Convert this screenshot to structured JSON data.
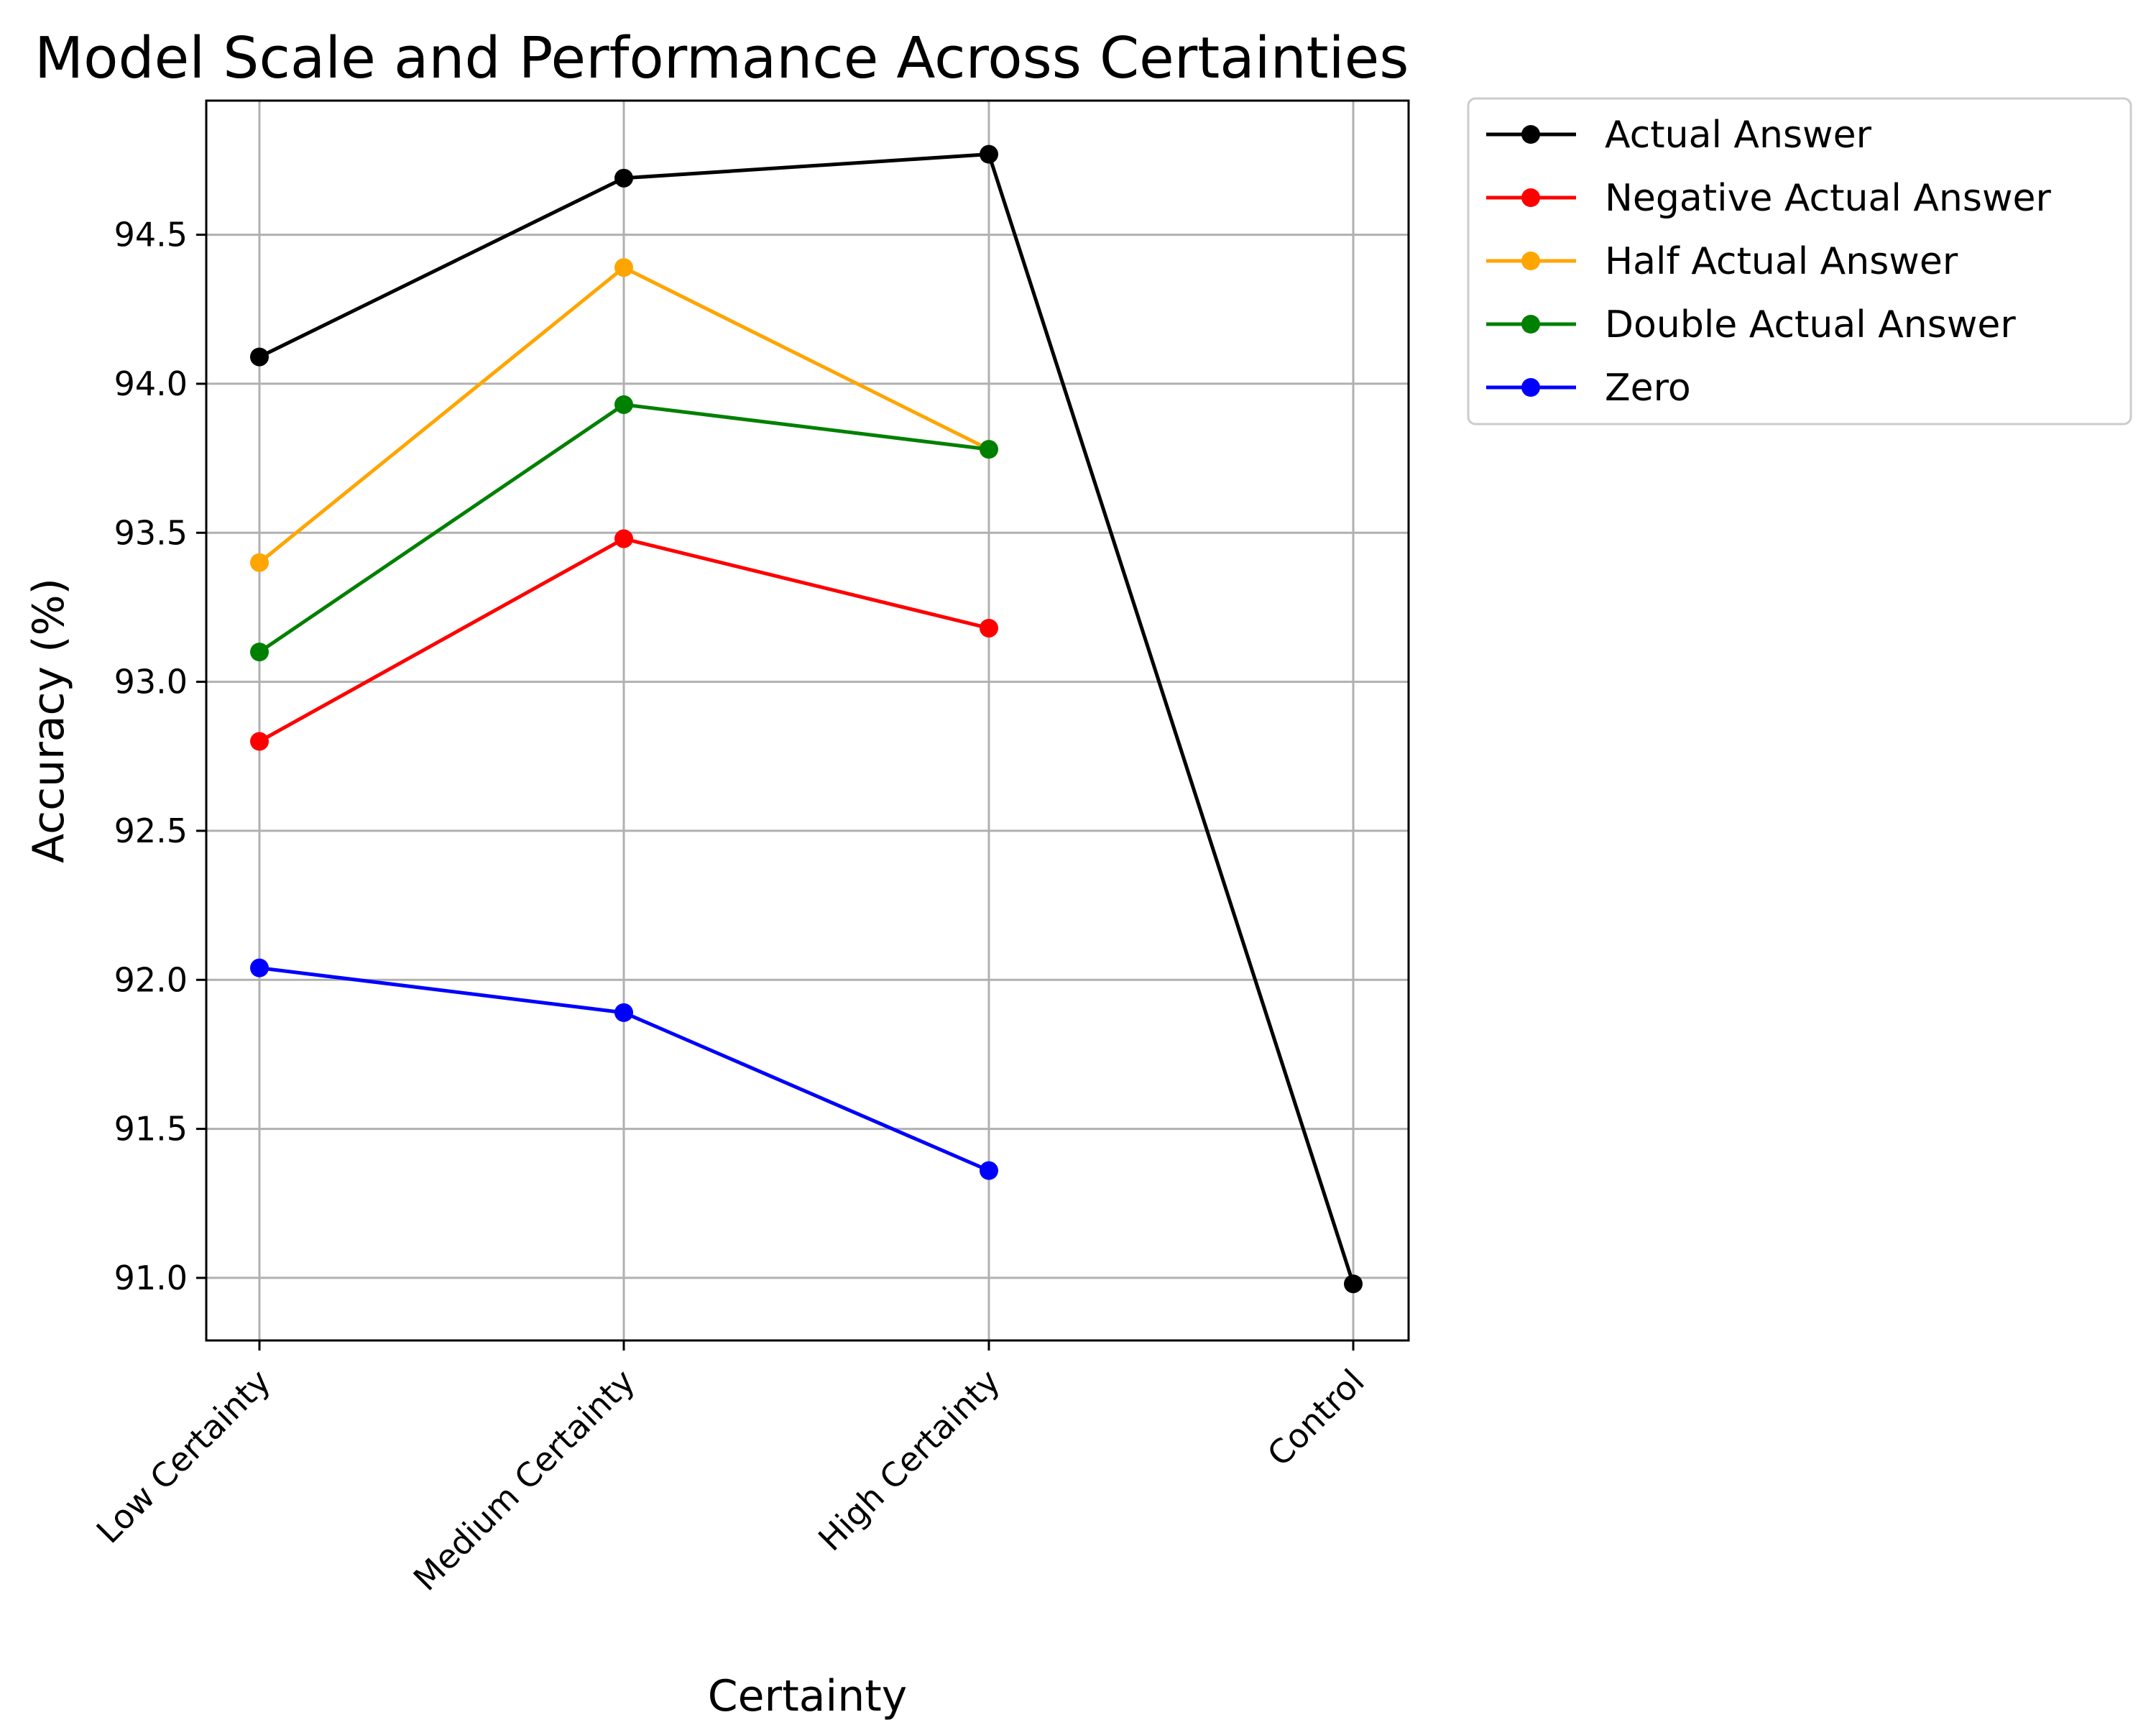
{
  "chart_data": {
    "type": "line",
    "title": "Model Scale and Performance Across Certainties",
    "xlabel": "Certainty",
    "ylabel": "Accuracy (%)",
    "categories": [
      "Low Certainty",
      "Medium Certainty",
      "High Certainty",
      "Control"
    ],
    "ylim": [
      90.79,
      94.95
    ],
    "yticks": [
      "91.0",
      "91.5",
      "92.0",
      "92.5",
      "93.0",
      "93.5",
      "94.0",
      "94.5"
    ],
    "grid": true,
    "legend_position": "outside-top-right",
    "series": [
      {
        "name": "Actual Answer",
        "color": "#000000",
        "values": [
          94.09,
          94.69,
          94.77,
          90.98
        ]
      },
      {
        "name": "Negative Actual Answer",
        "color": "#ff0000",
        "values": [
          92.8,
          93.48,
          93.18,
          null
        ]
      },
      {
        "name": "Half Actual Answer",
        "color": "#ffa500",
        "values": [
          93.4,
          94.39,
          93.78,
          null
        ]
      },
      {
        "name": "Double Actual Answer",
        "color": "#008000",
        "values": [
          93.1,
          93.93,
          93.78,
          null
        ]
      },
      {
        "name": "Zero",
        "color": "#0000ff",
        "values": [
          92.04,
          91.89,
          91.36,
          null
        ]
      }
    ]
  }
}
